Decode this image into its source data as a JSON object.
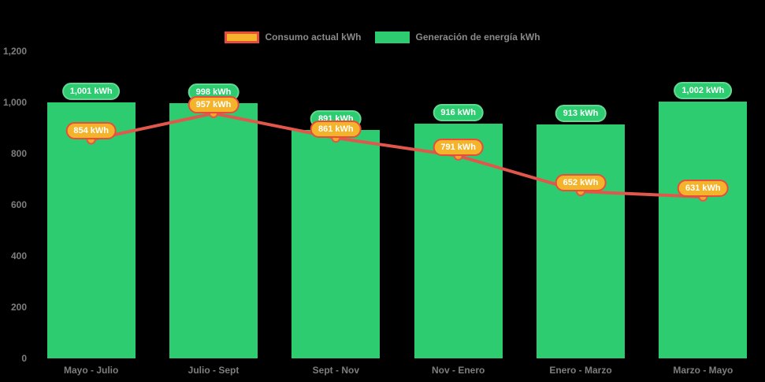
{
  "chart_data": {
    "type": "bar+line",
    "title": "",
    "unit": "kWh",
    "categories": [
      "Mayo - Julio",
      "Julio - Sept",
      "Sept - Nov",
      "Nov - Enero",
      "Enero - Marzo",
      "Marzo - Mayo"
    ],
    "series": [
      {
        "name": "Consumo actual kWh",
        "type": "line",
        "values": [
          854,
          957,
          861,
          791,
          652,
          631
        ],
        "line_color": "#e2574c",
        "marker_color": "#f3a626",
        "label_bg": "#f3b32b",
        "label_border": "#e74c3c"
      },
      {
        "name": "Generación de energía kWh",
        "type": "bar",
        "values": [
          1001,
          998,
          891,
          916,
          913,
          1002
        ],
        "color": "#2ecc71",
        "label_bg": "#2ecc71",
        "label_border": "#62d992"
      }
    ],
    "ylim": [
      0,
      1200
    ],
    "yticks": [
      0,
      200,
      400,
      600,
      800,
      1000,
      1200
    ],
    "grid": false,
    "legend_position": "top",
    "background": "#000000",
    "axis_text_color": "#7e7e7e"
  }
}
